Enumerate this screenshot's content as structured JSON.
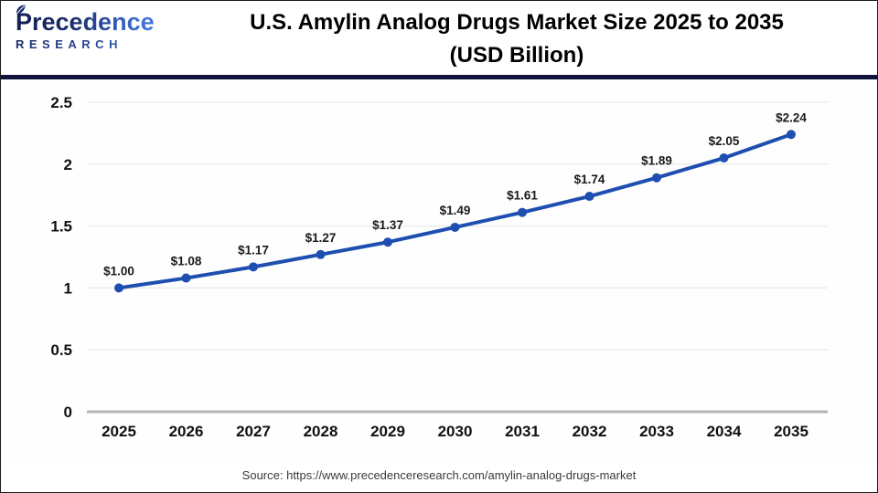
{
  "header": {
    "logo": {
      "line1": "Precedence",
      "line2": "RESEARCH",
      "leaf_icon": "leaf"
    },
    "title_line1": "U.S. Amylin Analog Drugs Market Size 2025 to 2035",
    "title_line2": "(USD Billion)"
  },
  "chart_data": {
    "type": "line",
    "title": "U.S. Amylin Analog Drugs Market Size 2025 to 2035 (USD Billion)",
    "categories": [
      "2025",
      "2026",
      "2027",
      "2028",
      "2029",
      "2030",
      "2031",
      "2032",
      "2033",
      "2034",
      "2035"
    ],
    "values": [
      1.0,
      1.08,
      1.17,
      1.27,
      1.37,
      1.49,
      1.61,
      1.74,
      1.89,
      2.05,
      2.24
    ],
    "data_labels": [
      "$1.00",
      "$1.08",
      "$1.17",
      "$1.27",
      "$1.37",
      "$1.49",
      "$1.61",
      "$1.74",
      "$1.89",
      "$2.05",
      "$2.24"
    ],
    "ylim": [
      0,
      2.5
    ],
    "yticks": [
      0,
      0.5,
      1,
      1.5,
      2,
      2.5
    ],
    "ytick_labels": [
      "0",
      "0.5",
      "1",
      "1.5",
      "2",
      "2.5"
    ],
    "xlabel": "",
    "ylabel": "",
    "grid": true,
    "legend": "none",
    "series_color": "#1e4fb0"
  },
  "footer": {
    "source": "Source: https://www.precedenceresearch.com/amylin-analog-drugs-market"
  },
  "colors": {
    "line": "#1e4fb0",
    "divider_navy": "#10143c",
    "gridline": "#ececec",
    "zero_axis": "#b3b3b3",
    "logo_navy": "#1b2a6b",
    "logo_blue": "#4a7fe0",
    "title_text": "#000000",
    "source_text": "#3a3a3a"
  }
}
